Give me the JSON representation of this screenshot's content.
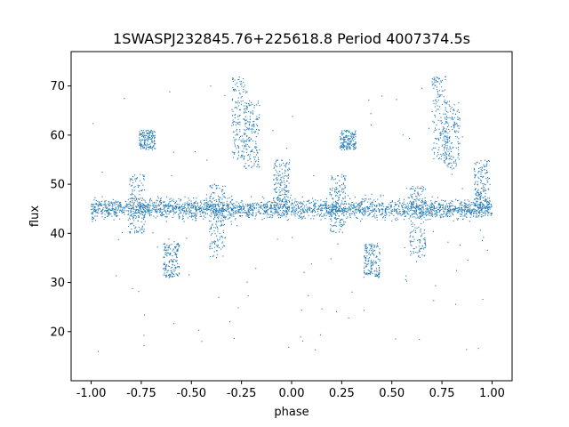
{
  "chart_data": {
    "type": "scatter",
    "title": "1SWASPJ232845.76+225618.8 Period 4007374.5s",
    "xlabel": "phase",
    "ylabel": "flux",
    "xlim": [
      -1.1,
      1.1
    ],
    "ylim": [
      10,
      77
    ],
    "xticks": [
      "-1.00",
      "-0.75",
      "-0.50",
      "-0.25",
      "0.00",
      "0.25",
      "0.50",
      "0.75",
      "1.00"
    ],
    "xtick_values": [
      -1.0,
      -0.75,
      -0.5,
      -0.25,
      0.0,
      0.25,
      0.5,
      0.75,
      1.0
    ],
    "yticks": [
      "20",
      "30",
      "40",
      "50",
      "60",
      "70"
    ],
    "ytick_values": [
      20,
      30,
      40,
      50,
      60,
      70
    ],
    "grid": false,
    "point_color": "#1f77b4",
    "baseline_flux": 45,
    "features": [
      {
        "phase": -0.77,
        "flux_range": [
          40,
          52
        ]
      },
      {
        "phase": -0.72,
        "flux_range": [
          57,
          61
        ]
      },
      {
        "phase": -0.6,
        "flux_range": [
          31,
          38
        ]
      },
      {
        "phase": -0.37,
        "flux_range": [
          35,
          50
        ]
      },
      {
        "phase": -0.26,
        "flux_range": [
          55,
          72
        ]
      },
      {
        "phase": -0.2,
        "flux_range": [
          53,
          67
        ]
      },
      {
        "phase": -0.05,
        "flux_range": [
          45,
          55
        ]
      },
      {
        "phase": 0.23,
        "flux_range": [
          40,
          52
        ]
      },
      {
        "phase": 0.28,
        "flux_range": [
          57,
          61
        ]
      },
      {
        "phase": 0.4,
        "flux_range": [
          31,
          38
        ]
      },
      {
        "phase": 0.63,
        "flux_range": [
          35,
          50
        ]
      },
      {
        "phase": 0.74,
        "flux_range": [
          55,
          72
        ]
      },
      {
        "phase": 0.8,
        "flux_range": [
          53,
          67
        ]
      },
      {
        "phase": 0.95,
        "flux_range": [
          45,
          55
        ]
      }
    ]
  }
}
